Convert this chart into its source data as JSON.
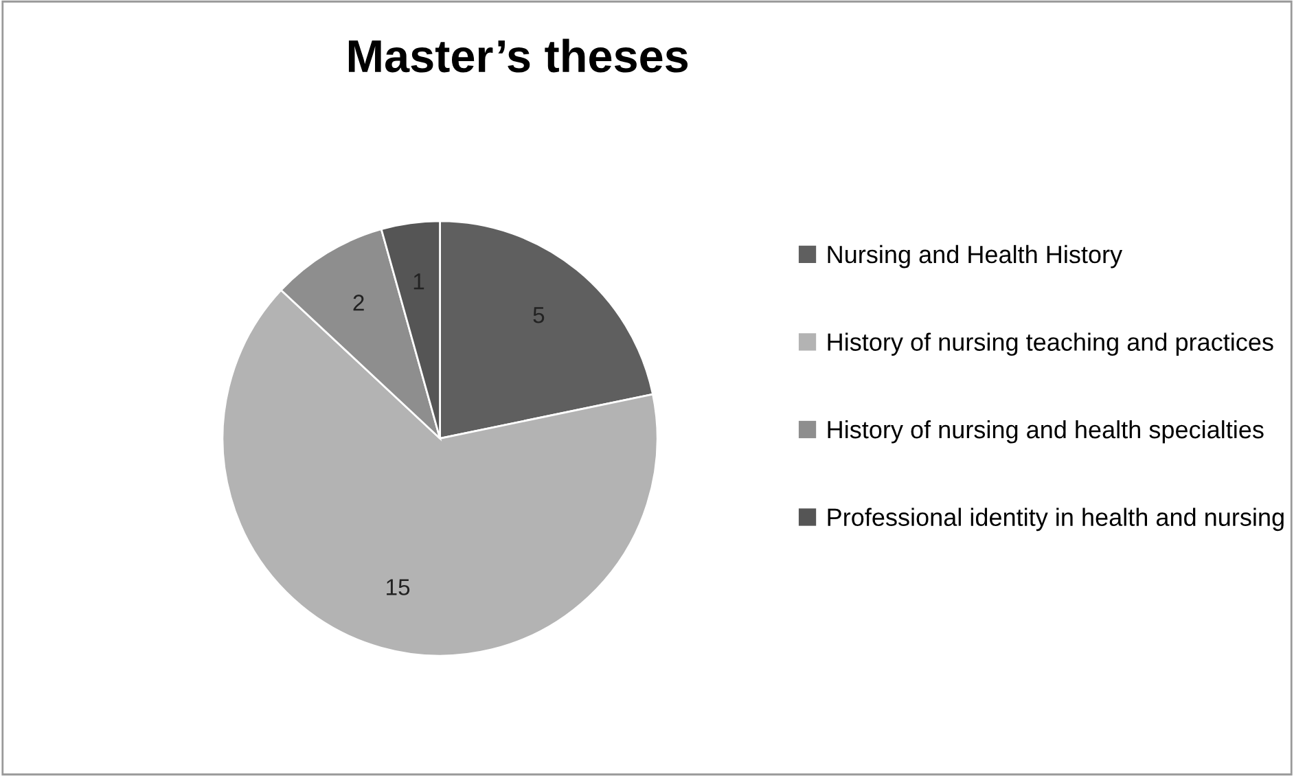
{
  "chart_data": {
    "type": "pie",
    "title": "Master’s theses",
    "categories": [
      "Nursing and Health History",
      "History of nursing teaching and practices",
      "History of nursing and health specialties",
      "Professional identity in health and nursing"
    ],
    "values": [
      5,
      15,
      2,
      1
    ],
    "colors": [
      "#5f5f5f",
      "#b3b3b3",
      "#8e8e8e",
      "#555555"
    ],
    "data_labels": true,
    "legend": "right"
  }
}
